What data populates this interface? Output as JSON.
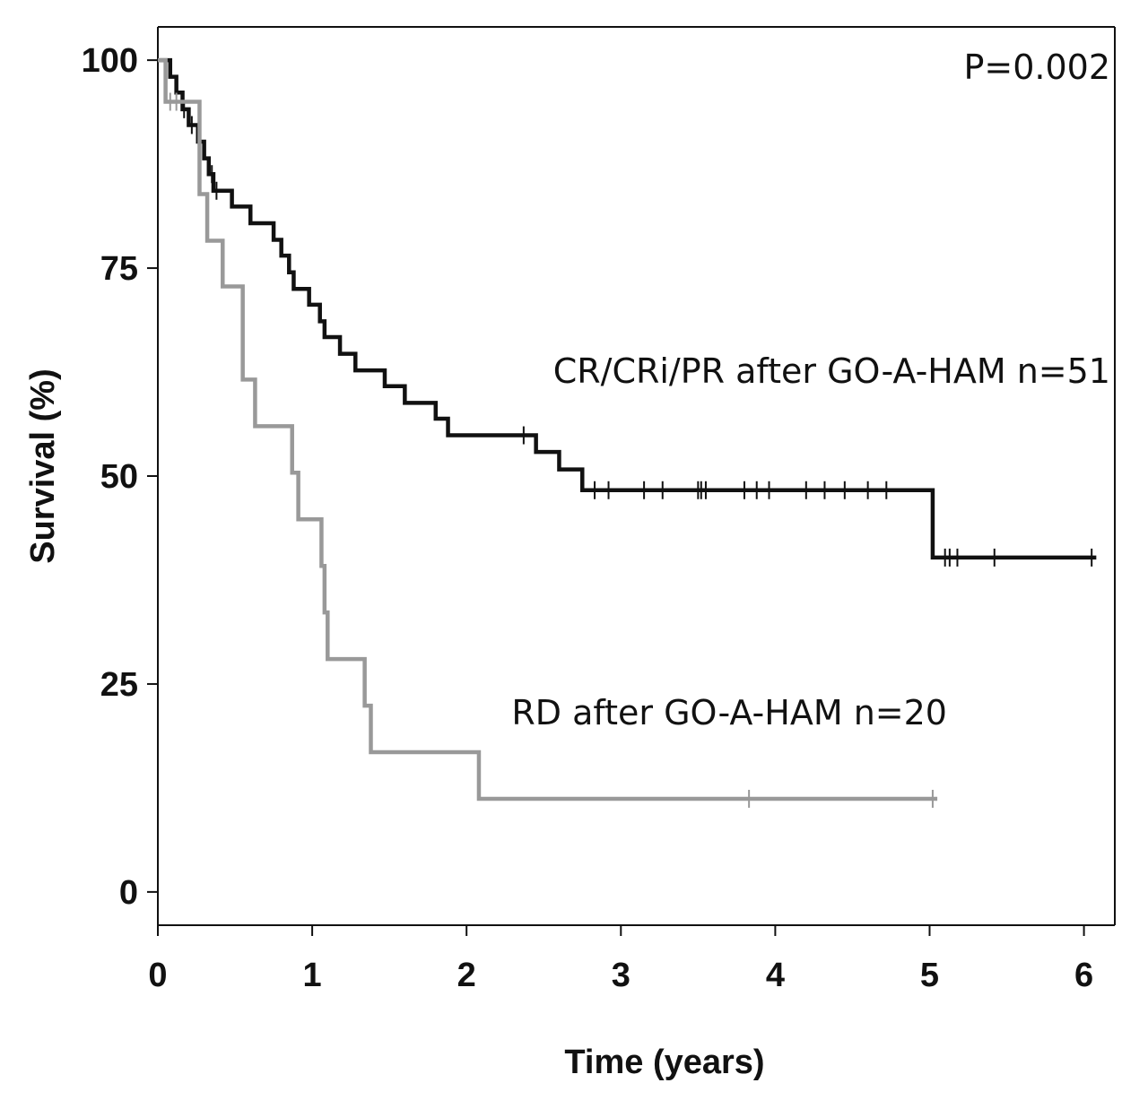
{
  "chart_data": {
    "type": "line",
    "subtype": "kaplan-meier",
    "title": "",
    "xlabel": "Time (years)",
    "ylabel": "Survival (%)",
    "xlim": [
      0,
      6.2
    ],
    "ylim": [
      -4,
      104
    ],
    "xticks": [
      0,
      1,
      2,
      3,
      4,
      5,
      6
    ],
    "yticks": [
      0,
      25,
      50,
      75,
      100
    ],
    "grid": false,
    "p_value_label": "P=0.002",
    "series": [
      {
        "name": "CR/CRi/PR after GO-A-HAM n=51",
        "label": "CR/CRi/PR after GO-A-HAM n=51",
        "color": "#111111",
        "steps": [
          [
            0,
            100
          ],
          [
            0.08,
            98
          ],
          [
            0.12,
            96.1
          ],
          [
            0.16,
            94.1
          ],
          [
            0.2,
            92.2
          ],
          [
            0.26,
            90.2
          ],
          [
            0.3,
            88.2
          ],
          [
            0.33,
            86.3
          ],
          [
            0.36,
            84.3
          ],
          [
            0.48,
            82.4
          ],
          [
            0.6,
            80.4
          ],
          [
            0.75,
            78.4
          ],
          [
            0.8,
            76.5
          ],
          [
            0.85,
            74.5
          ],
          [
            0.88,
            72.5
          ],
          [
            0.98,
            70.6
          ],
          [
            1.05,
            68.6
          ],
          [
            1.08,
            66.7
          ],
          [
            1.18,
            64.7
          ],
          [
            1.28,
            62.7
          ],
          [
            1.47,
            60.8
          ],
          [
            1.6,
            58.8
          ],
          [
            1.8,
            56.9
          ],
          [
            1.88,
            54.9
          ],
          [
            2.45,
            52.9
          ],
          [
            2.6,
            50.8
          ],
          [
            2.75,
            48.3
          ],
          [
            5.02,
            40.2
          ]
        ],
        "censored": [
          0.17,
          0.22,
          0.35,
          0.38,
          2.37,
          2.83,
          2.92,
          3.15,
          3.27,
          3.5,
          3.52,
          3.55,
          3.8,
          3.88,
          3.96,
          4.2,
          4.32,
          4.45,
          4.6,
          4.72,
          5.1,
          5.13,
          5.18,
          5.42,
          6.05
        ],
        "end_x": 6.08
      },
      {
        "name": "RD after GO-A-HAM n=20",
        "label": "RD after GO-A-HAM n=20",
        "color": "#999999",
        "steps": [
          [
            0,
            100
          ],
          [
            0.05,
            95
          ],
          [
            0.27,
            83.9
          ],
          [
            0.32,
            78.3
          ],
          [
            0.42,
            72.8
          ],
          [
            0.55,
            61.6
          ],
          [
            0.63,
            56
          ],
          [
            0.87,
            50.4
          ],
          [
            0.91,
            44.8
          ],
          [
            1.06,
            39.2
          ],
          [
            1.08,
            33.6
          ],
          [
            1.1,
            28
          ],
          [
            1.34,
            22.4
          ],
          [
            1.38,
            16.8
          ],
          [
            2.08,
            11.2
          ]
        ],
        "censored": [
          0.08,
          0.12,
          3.83,
          5.02
        ],
        "end_x": 5.05
      }
    ]
  }
}
